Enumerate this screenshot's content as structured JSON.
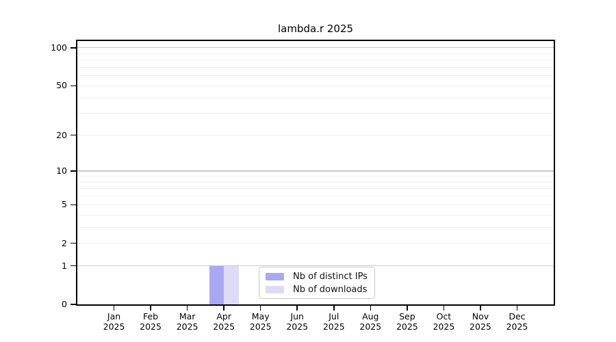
{
  "window": {
    "background": "#ffffff",
    "axis_color": "#000000"
  },
  "chart_data": {
    "type": "bar",
    "title": "lambda.r 2025",
    "categories": [
      "Jan",
      "Feb",
      "Mar",
      "Apr",
      "May",
      "Jun",
      "Jul",
      "Aug",
      "Sep",
      "Oct",
      "Nov",
      "Dec"
    ],
    "year": "2025",
    "series": [
      {
        "name": "Nb of distinct IPs",
        "color": "#a8a8f5",
        "values": [
          0,
          0,
          0,
          1,
          0,
          0,
          0,
          0,
          0,
          0,
          0,
          0
        ]
      },
      {
        "name": "Nb of downloads",
        "color": "#dcdcf8",
        "values": [
          0,
          0,
          0,
          1,
          0,
          0,
          0,
          0,
          0,
          0,
          0,
          0
        ]
      }
    ],
    "y_axis": {
      "scale": "log1p",
      "max": 113,
      "ticks": [
        0,
        1,
        2,
        5,
        10,
        20,
        50,
        100
      ]
    },
    "grid": {
      "major": [
        1,
        10,
        100
      ],
      "minor": [
        2,
        3,
        4,
        5,
        6,
        7,
        8,
        9,
        20,
        30,
        40,
        50,
        60,
        70,
        80,
        90
      ],
      "major_color": "#c8c8c8",
      "minor_color": "#efefef"
    },
    "legend": {
      "position": "lower center"
    }
  }
}
